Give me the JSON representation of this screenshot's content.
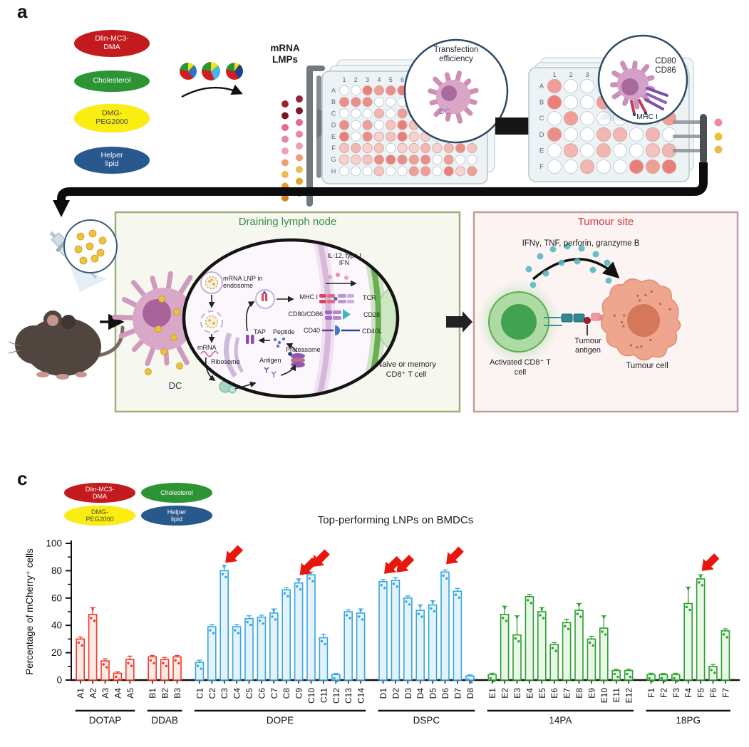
{
  "figure": {
    "panel_a_label": "a",
    "panel_c_label": "c"
  },
  "lipid_legend": [
    {
      "label": "Dlin-MC3-DMA",
      "color": "#c31a1d",
      "text_color": "#ffffff"
    },
    {
      "label": "Cholesterol",
      "color": "#2d9435",
      "text_color": "#ffffff"
    },
    {
      "label": "DMG-PEG2000",
      "color": "#f9ee0f",
      "text_color": "#454545"
    },
    {
      "label": "Helper lipid",
      "color": "#29588f",
      "text_color": "#ffffff"
    }
  ],
  "panel_a": {
    "mrna_label": "mRNA LMPs",
    "pies": [
      {
        "slices": [
          {
            "color": "#f2e410",
            "pct": 12
          },
          {
            "color": "#2e72c8",
            "pct": 28
          },
          {
            "color": "#cf1f1e",
            "pct": 38
          },
          {
            "color": "#2d9435",
            "pct": 22
          }
        ]
      },
      {
        "slices": [
          {
            "color": "#f2e410",
            "pct": 14
          },
          {
            "color": "#49b4e8",
            "pct": 30
          },
          {
            "color": "#cf1f1e",
            "pct": 34
          },
          {
            "color": "#2d9435",
            "pct": 22
          }
        ]
      },
      {
        "slices": [
          {
            "color": "#f2e410",
            "pct": 10
          },
          {
            "color": "#1e3f92",
            "pct": 32
          },
          {
            "color": "#cf1f1e",
            "pct": 36
          },
          {
            "color": "#2d9435",
            "pct": 22
          }
        ]
      }
    ],
    "plate1": {
      "cols": [
        "1",
        "2",
        "3",
        "4",
        "5",
        "6"
      ],
      "rows": [
        "A",
        "B",
        "C",
        "D",
        "E",
        "F",
        "G",
        "H"
      ]
    },
    "plate2": {
      "cols": [
        "1",
        "2",
        "3",
        "4"
      ],
      "rows": [
        "A",
        "B",
        "C",
        "D",
        "E",
        "F"
      ]
    },
    "inset1": {
      "title": "Transfection efficiency",
      "cell_label": "DC"
    },
    "inset2": {
      "title": "CD80 CD86",
      "bottom_label": "MHC I"
    },
    "droplet_colors": [
      "#f08ba2",
      "#e9c331",
      "#edba50"
    ],
    "lymph_node": {
      "title": "Draining lymph node",
      "dc_label": "DC",
      "endosome_label": "mRNA LNP in endosome",
      "mrna": "mRNA",
      "ribosome": "Ribosome",
      "tap": "TAP",
      "peptide": "Peptide",
      "proteasome": "Proteasome",
      "antigen": "Antigen",
      "cytokines": "IL-12, type I IFN",
      "mhc": "MHC I",
      "tcr": "TCR",
      "cd80_cd86": "CD80/CD86",
      "cd28": "CD28",
      "cd40": "CD40",
      "cd40l": "CD40L",
      "tcell": "Naive or memory CD8⁺ T cell"
    },
    "tumour_site": {
      "title": "Tumour site",
      "cytokines": "IFNγ, TNF, perforin, granzyme B",
      "activated_tcell": "Activated CD8⁺ T cell",
      "tumour_antigen": "Tumour antigen",
      "tumour_cell": "Tumour cell"
    }
  },
  "chart_data": {
    "type": "bar",
    "title": "Top-performing LNPs on BMDCs",
    "ylabel": "Percentage of mCherry⁺ cells",
    "ylim": [
      0,
      100
    ],
    "yticks": [
      0,
      20,
      40,
      60,
      80,
      100
    ],
    "minor_yticks": [
      10,
      30,
      50,
      70,
      90
    ],
    "legend_position": "top-left",
    "grid": false,
    "groups": [
      {
        "name": "DOTAP",
        "color_key": "red",
        "categories": [
          "A1",
          "A2",
          "A3",
          "A4",
          "A5"
        ],
        "values": [
          30,
          48,
          14,
          5,
          15
        ],
        "errors": [
          1.5,
          5,
          1.5,
          1,
          2.5
        ]
      },
      {
        "name": "DDAB",
        "color_key": "red",
        "categories": [
          "B1",
          "B2",
          "B3"
        ],
        "values": [
          17,
          15,
          17
        ],
        "errors": [
          1,
          1.5,
          1
        ]
      },
      {
        "name": "DOPE",
        "color_key": "blue",
        "categories": [
          "C1",
          "C2",
          "C3",
          "C4",
          "C5",
          "C6",
          "C7",
          "C8",
          "C9",
          "C10",
          "C11",
          "C12",
          "C13",
          "C14"
        ],
        "values": [
          13,
          39,
          80,
          39,
          45,
          46,
          49,
          66,
          71,
          77,
          31,
          4,
          50,
          49
        ],
        "errors": [
          1.5,
          1.5,
          4,
          1.5,
          2,
          1.5,
          3,
          1.5,
          3,
          2,
          2.5,
          0.8,
          1.5,
          3
        ]
      },
      {
        "name": "DSPC",
        "color_key": "blue",
        "categories": [
          "D1",
          "D2",
          "D3",
          "D4",
          "D5",
          "D6",
          "D7",
          "D8"
        ],
        "values": [
          72,
          73,
          60,
          51,
          55,
          79,
          65,
          3
        ],
        "errors": [
          1.5,
          2,
          1.5,
          4,
          3,
          1.5,
          2,
          0.8
        ]
      },
      {
        "name": "14PA",
        "color_key": "green",
        "categories": [
          "E1",
          "E2",
          "E3",
          "E4",
          "E5",
          "E6",
          "E7",
          "E8",
          "E9",
          "E10",
          "E11",
          "E12"
        ],
        "values": [
          4,
          48,
          33,
          61,
          50,
          26,
          42,
          51,
          30,
          38,
          7,
          7
        ],
        "errors": [
          1,
          6,
          14,
          1.5,
          3,
          1.5,
          2.5,
          5,
          2,
          9,
          1,
          1
        ]
      },
      {
        "name": "18PG",
        "color_key": "green",
        "categories": [
          "F1",
          "F2",
          "F3",
          "F4",
          "F5",
          "F6",
          "F7"
        ],
        "values": [
          4,
          4,
          4,
          56,
          74,
          10,
          36
        ],
        "errors": [
          1,
          0.8,
          1,
          12,
          3,
          1.5,
          1.5
        ]
      }
    ],
    "highlighted": [
      "C3",
      "C9",
      "C10",
      "D1",
      "D2",
      "D6",
      "F5"
    ],
    "bar_colors": {
      "red": {
        "stroke": "#f03a28",
        "fill": "#fdeae6"
      },
      "blue": {
        "stroke": "#37a7e0",
        "fill": "#e4f2fb"
      },
      "green": {
        "stroke": "#2aa12e",
        "fill": "#eaf6e7"
      }
    },
    "highlight_arrow_color": "#e8170d"
  }
}
